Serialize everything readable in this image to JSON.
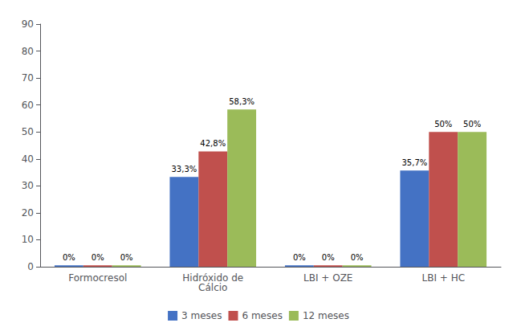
{
  "chart_data": {
    "type": "bar",
    "categories": [
      "Formocresol",
      "Hidróxido de\nCálcio",
      "LBI + OZE",
      "LBI + HC"
    ],
    "series": [
      {
        "name": "3 meses",
        "color": "#4472C4",
        "values": [
          0.5,
          33.3,
          0.5,
          35.7
        ],
        "value_labels": [
          "0%",
          "33,3%",
          "0%",
          "35,7%"
        ]
      },
      {
        "name": "6 meses",
        "color": "#C0504D",
        "values": [
          0.5,
          42.8,
          0.5,
          50.0
        ],
        "value_labels": [
          "0%",
          "42,8%",
          "0%",
          "50%"
        ]
      },
      {
        "name": "12 meses",
        "color": "#9BBB59",
        "values": [
          0.5,
          58.3,
          0.5,
          50.0
        ],
        "value_labels": [
          "0%",
          "58,3%",
          "0%",
          "50%"
        ]
      }
    ],
    "ylim": [
      0,
      90
    ],
    "yticks": [
      0,
      10,
      20,
      30,
      40,
      50,
      60,
      70,
      80,
      90
    ],
    "grid": false,
    "legend": "bottom",
    "data_labels": true
  }
}
